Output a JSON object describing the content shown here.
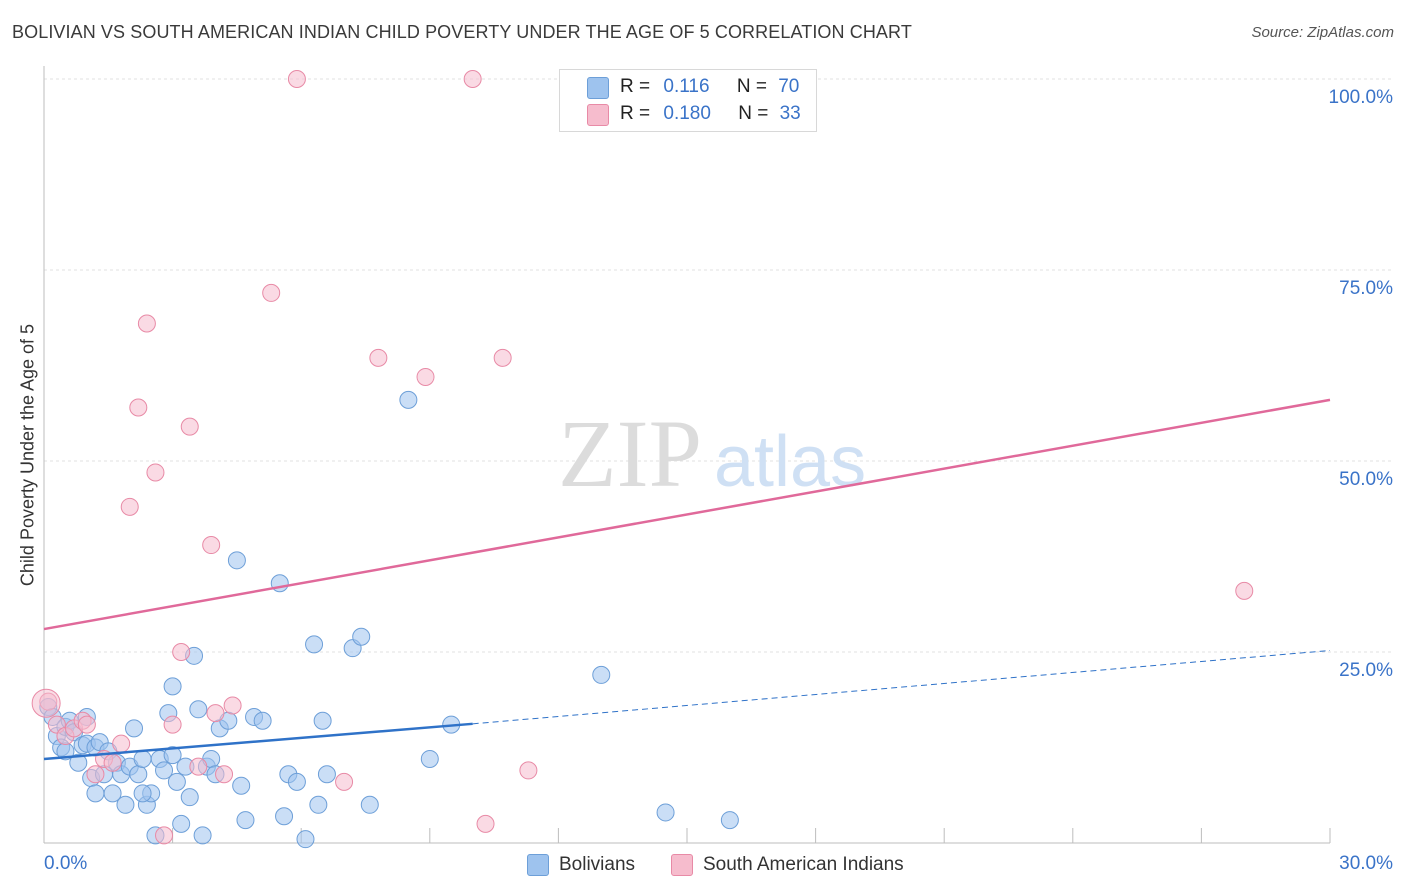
{
  "header": {
    "title": "BOLIVIAN VS SOUTH AMERICAN INDIAN CHILD POVERTY UNDER THE AGE OF 5 CORRELATION CHART",
    "source": "Source: ZipAtlas.com"
  },
  "watermark": {
    "zip": "ZIP",
    "atlas": "atlas"
  },
  "legend": {
    "rows": [
      {
        "r_label": "R =",
        "r_value": "0.116",
        "n_label": "N =",
        "n_value": "70",
        "color": "#9ec3ee",
        "border": "#6d9fd8"
      },
      {
        "r_label": "R =",
        "r_value": "0.180",
        "n_label": "N =",
        "n_value": "33",
        "color": "#f6bccd",
        "border": "#e88aa6"
      }
    ]
  },
  "bottom_legend": [
    {
      "label": "Bolivians",
      "color": "#9ec3ee",
      "border": "#6d9fd8"
    },
    {
      "label": "South American Indians",
      "color": "#f6bccd",
      "border": "#e88aa6"
    }
  ],
  "chart_data": {
    "type": "scatter",
    "title": "BOLIVIAN VS SOUTH AMERICAN INDIAN CHILD POVERTY UNDER THE AGE OF 5 CORRELATION CHART",
    "xlabel": "",
    "ylabel": "Child Poverty Under the Age of 5",
    "xlim": [
      0,
      30
    ],
    "ylim": [
      0,
      100
    ],
    "x_tick_labels": [
      "0.0%",
      "30.0%"
    ],
    "y_tick_labels": [
      "100.0%",
      "75.0%",
      "50.0%",
      "25.0%"
    ],
    "y_tick_values": [
      100,
      75,
      50,
      25
    ],
    "grid": true,
    "legend_position": "top-center",
    "series": [
      {
        "name": "Bolivians",
        "color": "#9ec3ee",
        "stroke": "#6d9fd8",
        "line_color": "#2f72c8",
        "trend": {
          "x0": 0,
          "y0": 11.0,
          "x1": 10.0,
          "y1": 15.6,
          "dash_to_x": 30,
          "dash_to_y": 25.2
        },
        "points": [
          [
            0.1,
            17.8
          ],
          [
            0.2,
            16.5
          ],
          [
            0.3,
            14.0
          ],
          [
            0.4,
            12.5
          ],
          [
            0.5,
            15.2
          ],
          [
            0.6,
            16.0
          ],
          [
            0.7,
            14.5
          ],
          [
            0.8,
            10.5
          ],
          [
            0.9,
            12.8
          ],
          [
            1.0,
            13.0
          ],
          [
            1.0,
            16.5
          ],
          [
            1.1,
            8.5
          ],
          [
            1.2,
            12.5
          ],
          [
            1.3,
            13.2
          ],
          [
            1.4,
            9.0
          ],
          [
            1.5,
            12.0
          ],
          [
            1.6,
            6.5
          ],
          [
            1.7,
            10.5
          ],
          [
            1.8,
            9.0
          ],
          [
            1.9,
            5.0
          ],
          [
            2.0,
            10.0
          ],
          [
            2.1,
            15.0
          ],
          [
            2.2,
            9.0
          ],
          [
            2.3,
            11.0
          ],
          [
            2.4,
            5.0
          ],
          [
            2.5,
            6.5
          ],
          [
            2.6,
            1.0
          ],
          [
            2.7,
            11.0
          ],
          [
            2.8,
            9.5
          ],
          [
            2.9,
            17.0
          ],
          [
            3.0,
            20.5
          ],
          [
            3.1,
            8.0
          ],
          [
            3.2,
            2.5
          ],
          [
            3.3,
            10.0
          ],
          [
            3.4,
            6.0
          ],
          [
            3.5,
            24.5
          ],
          [
            3.6,
            17.5
          ],
          [
            3.7,
            1.0
          ],
          [
            3.8,
            10.0
          ],
          [
            3.9,
            11.0
          ],
          [
            4.0,
            9.0
          ],
          [
            4.1,
            15.0
          ],
          [
            4.3,
            16.0
          ],
          [
            4.5,
            37.0
          ],
          [
            4.6,
            7.5
          ],
          [
            4.7,
            3.0
          ],
          [
            4.9,
            16.5
          ],
          [
            5.1,
            16.0
          ],
          [
            5.5,
            34.0
          ],
          [
            5.6,
            3.5
          ],
          [
            5.7,
            9.0
          ],
          [
            5.9,
            8.0
          ],
          [
            6.1,
            0.5
          ],
          [
            6.3,
            26.0
          ],
          [
            6.4,
            5.0
          ],
          [
            6.5,
            16.0
          ],
          [
            6.6,
            9.0
          ],
          [
            7.2,
            25.5
          ],
          [
            7.4,
            27.0
          ],
          [
            7.6,
            5.0
          ],
          [
            8.5,
            58.0
          ],
          [
            9.0,
            11.0
          ],
          [
            9.5,
            15.5
          ],
          [
            13.0,
            22.0
          ],
          [
            14.5,
            4.0
          ],
          [
            16.0,
            3.0
          ],
          [
            2.3,
            6.5
          ],
          [
            1.2,
            6.5
          ],
          [
            3.0,
            11.5
          ],
          [
            0.5,
            12.0
          ]
        ]
      },
      {
        "name": "South American Indians",
        "color": "#f6bccd",
        "stroke": "#e88aa6",
        "line_color": "#e0699a",
        "trend": {
          "x0": 0,
          "y0": 28.0,
          "x1": 30,
          "y1": 58.0
        },
        "points": [
          [
            0.1,
            18.5
          ],
          [
            0.3,
            15.5
          ],
          [
            0.5,
            14.0
          ],
          [
            0.7,
            15.0
          ],
          [
            0.9,
            16.0
          ],
          [
            1.0,
            15.5
          ],
          [
            1.2,
            9.0
          ],
          [
            1.4,
            11.0
          ],
          [
            1.6,
            10.5
          ],
          [
            1.8,
            13.0
          ],
          [
            2.0,
            44.0
          ],
          [
            2.2,
            57.0
          ],
          [
            2.4,
            68.0
          ],
          [
            2.6,
            48.5
          ],
          [
            2.8,
            1.0
          ],
          [
            3.0,
            15.5
          ],
          [
            3.2,
            25.0
          ],
          [
            3.4,
            54.5
          ],
          [
            3.6,
            10.0
          ],
          [
            3.9,
            39.0
          ],
          [
            4.0,
            17.0
          ],
          [
            4.2,
            9.0
          ],
          [
            4.4,
            18.0
          ],
          [
            5.3,
            72.0
          ],
          [
            5.9,
            100.0
          ],
          [
            7.0,
            8.0
          ],
          [
            7.8,
            63.5
          ],
          [
            8.9,
            61.0
          ],
          [
            10.0,
            100.0
          ],
          [
            10.3,
            2.5
          ],
          [
            10.7,
            63.5
          ],
          [
            11.3,
            9.5
          ],
          [
            28.0,
            33.0
          ]
        ]
      }
    ]
  }
}
